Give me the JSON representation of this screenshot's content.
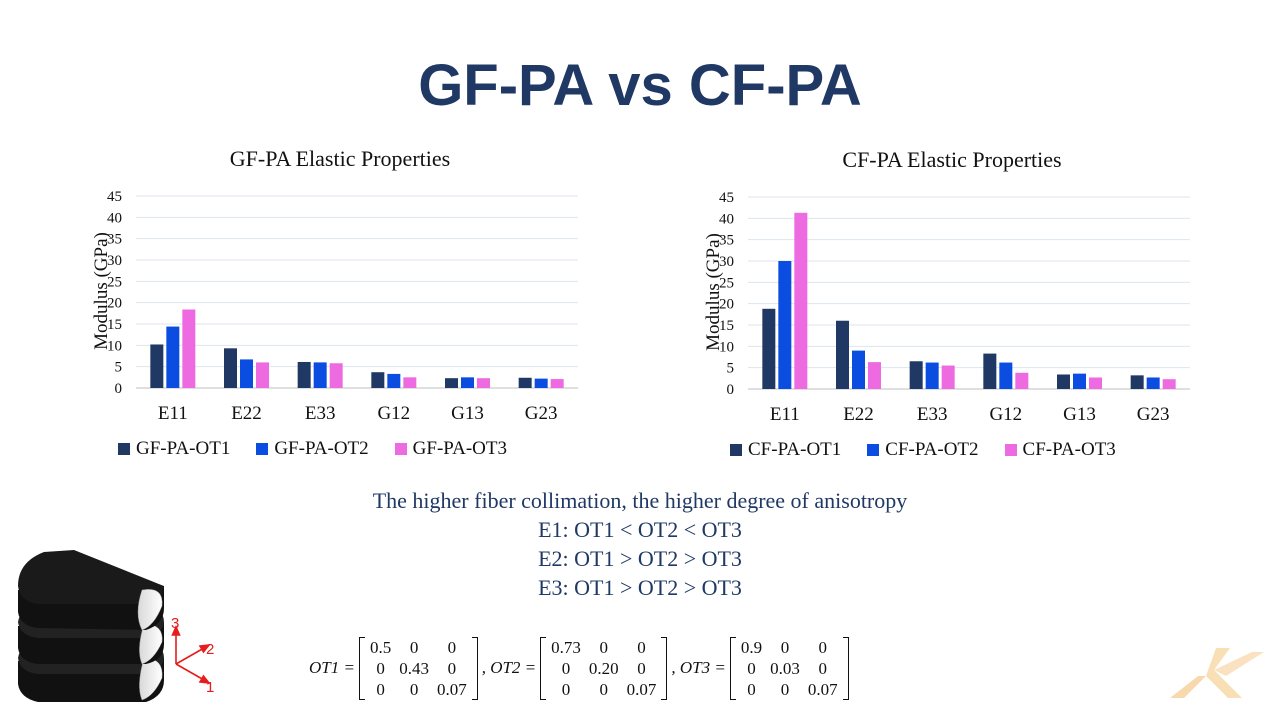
{
  "slide": {
    "title": "GF-PA vs CF-PA"
  },
  "chart_data": [
    {
      "type": "bar",
      "title": "GF-PA Elastic Properties",
      "ylabel": "Modulus (GPa)",
      "xlabel": "",
      "categories": [
        "E11",
        "E22",
        "E33",
        "G12",
        "G13",
        "G23"
      ],
      "ylim": [
        0,
        45
      ],
      "yticks": [
        0,
        5,
        10,
        15,
        20,
        25,
        30,
        35,
        40,
        45
      ],
      "grid": true,
      "legend": "bottom",
      "series": [
        {
          "name": "GF-PA-OT1",
          "color": "#1f3864",
          "values": [
            10.2,
            9.3,
            6.1,
            3.7,
            2.3,
            2.4
          ]
        },
        {
          "name": "GF-PA-OT2",
          "color": "#0a4de0",
          "values": [
            14.4,
            6.7,
            6.0,
            3.3,
            2.5,
            2.2
          ]
        },
        {
          "name": "GF-PA-OT3",
          "color": "#ee6ae0",
          "values": [
            18.4,
            6.0,
            5.8,
            2.5,
            2.3,
            2.1
          ]
        }
      ]
    },
    {
      "type": "bar",
      "title": "CF-PA Elastic Properties",
      "ylabel": "Modulus (GPa)",
      "xlabel": "",
      "categories": [
        "E11",
        "E22",
        "E33",
        "G12",
        "G13",
        "G23"
      ],
      "ylim": [
        0,
        45
      ],
      "yticks": [
        0,
        5,
        10,
        15,
        20,
        25,
        30,
        35,
        40,
        45
      ],
      "grid": true,
      "legend": "bottom",
      "series": [
        {
          "name": "CF-PA-OT1",
          "color": "#1f3864",
          "values": [
            18.8,
            16.0,
            6.5,
            8.3,
            3.4,
            3.2
          ]
        },
        {
          "name": "CF-PA-OT2",
          "color": "#0a4de0",
          "values": [
            30.0,
            9.0,
            6.2,
            6.2,
            3.6,
            2.7
          ]
        },
        {
          "name": "CF-PA-OT3",
          "color": "#ee6ae0",
          "values": [
            41.3,
            6.3,
            5.5,
            3.8,
            2.7,
            2.3
          ]
        }
      ]
    }
  ],
  "summary": {
    "line1": "The higher fiber collimation, the higher degree of anisotropy",
    "line2": "E1: OT1 < OT2 < OT3",
    "line3": "E2: OT1 > OT2 > OT3",
    "line4": "E3: OT1 > OT2 > OT3"
  },
  "matrices": [
    {
      "label": "OT1 =",
      "rows": [
        [
          "0.5",
          "0",
          "0"
        ],
        [
          "0",
          "0.43",
          "0"
        ],
        [
          "0",
          "0",
          "0.07"
        ]
      ]
    },
    {
      "label": ", OT2 =",
      "rows": [
        [
          "0.73",
          "0",
          "0"
        ],
        [
          "0",
          "0.20",
          "0"
        ],
        [
          "0",
          "0",
          "0.07"
        ]
      ]
    },
    {
      "label": ", OT3 =",
      "rows": [
        [
          "0.9",
          "0",
          "0"
        ],
        [
          "0",
          "0.03",
          "0"
        ],
        [
          "0",
          "0",
          "0.07"
        ]
      ]
    }
  ],
  "axes_diagram": {
    "labels": [
      "3",
      "2",
      "1"
    ],
    "color": "#e81c1c"
  },
  "watermark": {
    "icon": "x-logo-icon",
    "color": "#f5c98a"
  }
}
